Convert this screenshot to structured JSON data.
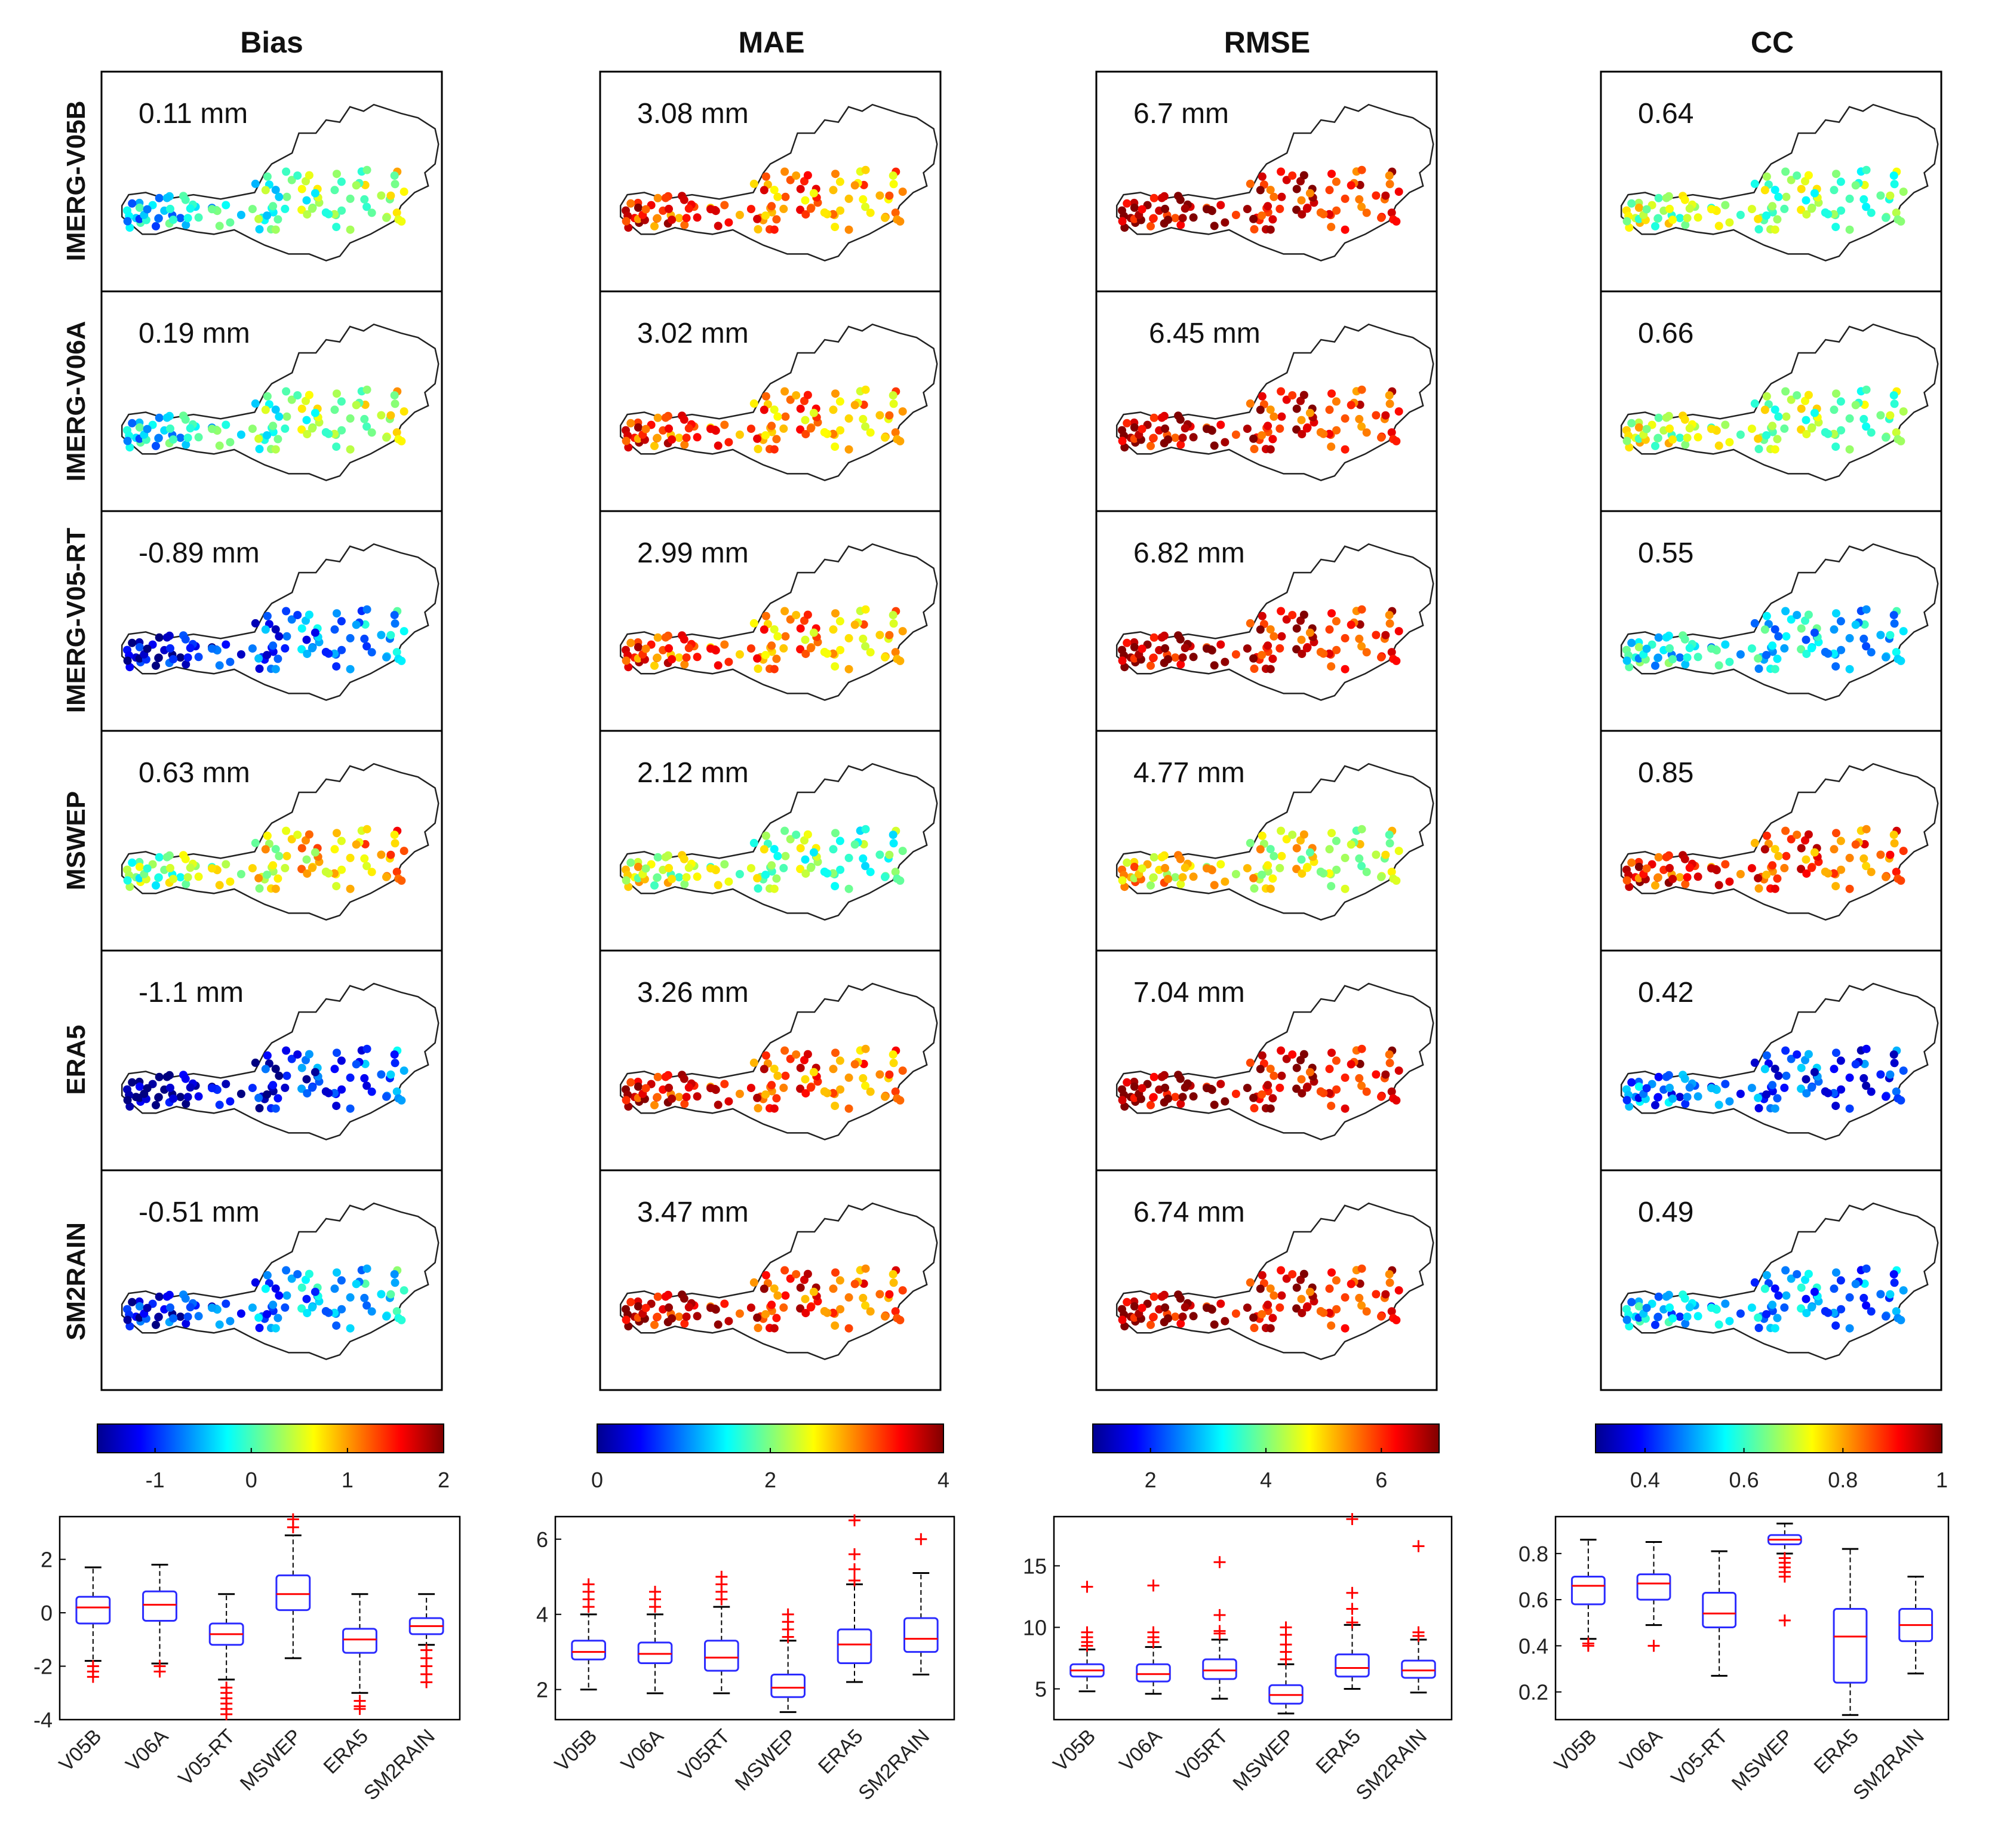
{
  "panels": [
    {
      "title": "Bias",
      "colorbar": {
        "min": -1.6,
        "max": 2,
        "ticks": [
          -1,
          0,
          1,
          2
        ]
      },
      "maps": [
        {
          "label": "IMERG-V05B",
          "value": "0.11 mm"
        },
        {
          "label": "IMERG-V06A",
          "value": "0.19 mm"
        },
        {
          "label": "IMERG-V05-RT",
          "value": "-0.89 mm"
        },
        {
          "label": "MSWEP",
          "value": "0.63 mm"
        },
        {
          "label": "ERA5",
          "value": "-1.1 mm"
        },
        {
          "label": "SM2RAIN",
          "value": "-0.51 mm"
        }
      ]
    },
    {
      "title": "MAE",
      "colorbar": {
        "min": 0,
        "max": 4,
        "ticks": [
          0,
          2,
          4
        ]
      },
      "maps": [
        {
          "label": "IMERG-V05B",
          "value": "3.08 mm"
        },
        {
          "label": "IMERG-V06A",
          "value": "3.02 mm"
        },
        {
          "label": "IMERG-V05-RT",
          "value": "2.99 mm"
        },
        {
          "label": "MSWEP",
          "value": "2.12 mm"
        },
        {
          "label": "ERA5",
          "value": "3.26 mm"
        },
        {
          "label": "SM2RAIN",
          "value": "3.47 mm"
        }
      ]
    },
    {
      "title": "RMSE",
      "colorbar": {
        "min": 1,
        "max": 7,
        "ticks": [
          2,
          4,
          6
        ]
      },
      "maps": [
        {
          "label": "IMERG-V05B",
          "value": "6.7 mm"
        },
        {
          "label": "IMERG-V06A",
          "value": "6.45 mm"
        },
        {
          "label": "IMERG-V05-RT",
          "value": "6.82 mm"
        },
        {
          "label": "MSWEP",
          "value": "4.77 mm"
        },
        {
          "label": "ERA5",
          "value": "7.04 mm"
        },
        {
          "label": "SM2RAIN",
          "value": "6.74 mm"
        }
      ]
    },
    {
      "title": "CC",
      "colorbar": {
        "min": 0.3,
        "max": 1,
        "ticks": [
          0.4,
          0.6,
          0.8,
          1
        ]
      },
      "maps": [
        {
          "label": "IMERG-V05B",
          "value": "0.64"
        },
        {
          "label": "IMERG-V06A",
          "value": "0.66"
        },
        {
          "label": "IMERG-V05-RT",
          "value": "0.55"
        },
        {
          "label": "MSWEP",
          "value": "0.85"
        },
        {
          "label": "ERA5",
          "value": "0.42"
        },
        {
          "label": "SM2RAIN",
          "value": "0.49"
        }
      ]
    }
  ],
  "chart_data": [
    {
      "type": "box",
      "metric": "Bias",
      "categories": [
        "V05B",
        "V06A",
        "V05-RT",
        "MSWEP",
        "ERA5",
        "SM2RAIN"
      ],
      "ylim": [
        -4,
        3.6
      ],
      "yticks": [
        -4,
        -2,
        0,
        2
      ],
      "boxes": [
        {
          "q1": -0.4,
          "median": 0.2,
          "q3": 0.6,
          "whislo": -1.8,
          "whishi": 1.7,
          "outliers": [
            -2.0,
            -2.2,
            -2.4
          ]
        },
        {
          "q1": -0.3,
          "median": 0.3,
          "q3": 0.8,
          "whislo": -1.9,
          "whishi": 1.8,
          "outliers": [
            -2.0,
            -2.2
          ]
        },
        {
          "q1": -1.2,
          "median": -0.8,
          "q3": -0.4,
          "whislo": -2.5,
          "whishi": 0.7,
          "outliers": [
            -2.8,
            -3.0,
            -3.2,
            -3.4,
            -3.6,
            -3.8
          ]
        },
        {
          "q1": 0.1,
          "median": 0.7,
          "q3": 1.4,
          "whislo": -1.7,
          "whishi": 2.9,
          "outliers": [
            3.2,
            3.5
          ]
        },
        {
          "q1": -1.5,
          "median": -1.0,
          "q3": -0.6,
          "whislo": -3.0,
          "whishi": 0.7,
          "outliers": [
            -3.3,
            -3.5,
            -3.6
          ]
        },
        {
          "q1": -0.8,
          "median": -0.5,
          "q3": -0.2,
          "whislo": -1.2,
          "whishi": 0.7,
          "outliers": [
            -1.4,
            -1.7,
            -2.0,
            -2.3,
            -2.6
          ]
        }
      ]
    },
    {
      "type": "box",
      "metric": "MAE",
      "categories": [
        "V05B",
        "V06A",
        "V05RT",
        "MSWEP",
        "ERA5",
        "SM2RAIN"
      ],
      "ylim": [
        1.2,
        6.6
      ],
      "yticks": [
        2,
        4,
        6
      ],
      "boxes": [
        {
          "q1": 2.8,
          "median": 3.0,
          "q3": 3.3,
          "whislo": 2.0,
          "whishi": 4.0,
          "outliers": [
            4.2,
            4.4,
            4.6,
            4.8
          ]
        },
        {
          "q1": 2.7,
          "median": 2.95,
          "q3": 3.25,
          "whislo": 1.9,
          "whishi": 4.0,
          "outliers": [
            4.2,
            4.4,
            4.6
          ]
        },
        {
          "q1": 2.5,
          "median": 2.85,
          "q3": 3.3,
          "whislo": 1.9,
          "whishi": 4.2,
          "outliers": [
            4.4,
            4.6,
            4.8,
            5.0
          ]
        },
        {
          "q1": 1.8,
          "median": 2.05,
          "q3": 2.4,
          "whislo": 1.4,
          "whishi": 3.3,
          "outliers": [
            3.4,
            3.6,
            3.8,
            4.0
          ]
        },
        {
          "q1": 2.7,
          "median": 3.2,
          "q3": 3.6,
          "whislo": 2.2,
          "whishi": 4.8,
          "outliers": [
            4.9,
            5.2,
            5.6,
            6.5
          ]
        },
        {
          "q1": 3.0,
          "median": 3.35,
          "q3": 3.9,
          "whislo": 2.4,
          "whishi": 5.1,
          "outliers": [
            6.0
          ]
        }
      ]
    },
    {
      "type": "box",
      "metric": "RMSE",
      "categories": [
        "V05B",
        "V06A",
        "V05RT",
        "MSWEP",
        "ERA5",
        "SM2RAIN"
      ],
      "ylim": [
        2.5,
        19
      ],
      "yticks": [
        5,
        10,
        15
      ],
      "boxes": [
        {
          "q1": 6.0,
          "median": 6.5,
          "q3": 7.0,
          "whislo": 4.8,
          "whishi": 8.2,
          "outliers": [
            8.5,
            8.8,
            9.2,
            9.6,
            13.3
          ]
        },
        {
          "q1": 5.6,
          "median": 6.2,
          "q3": 7.0,
          "whislo": 4.6,
          "whishi": 8.4,
          "outliers": [
            8.8,
            9.2,
            9.6,
            13.4
          ]
        },
        {
          "q1": 5.8,
          "median": 6.5,
          "q3": 7.4,
          "whislo": 4.2,
          "whishi": 9.0,
          "outliers": [
            9.5,
            9.7,
            11.0,
            15.3
          ]
        },
        {
          "q1": 3.8,
          "median": 4.5,
          "q3": 5.3,
          "whislo": 3.0,
          "whishi": 7.0,
          "outliers": [
            7.4,
            8.0,
            8.6,
            9.4,
            10.0
          ]
        },
        {
          "q1": 6.0,
          "median": 6.7,
          "q3": 7.8,
          "whislo": 5.0,
          "whishi": 10.2,
          "outliers": [
            10.4,
            11.5,
            12.8,
            18.8
          ]
        },
        {
          "q1": 5.9,
          "median": 6.5,
          "q3": 7.3,
          "whislo": 4.7,
          "whishi": 9.0,
          "outliers": [
            9.3,
            9.6,
            16.6
          ]
        }
      ]
    },
    {
      "type": "box",
      "metric": "CC",
      "categories": [
        "V05B",
        "V06A",
        "V05-RT",
        "MSWEP",
        "ERA5",
        "SM2RAIN"
      ],
      "ylim": [
        0.08,
        0.96
      ],
      "yticks": [
        0.2,
        0.4,
        0.6,
        0.8
      ],
      "boxes": [
        {
          "q1": 0.58,
          "median": 0.66,
          "q3": 0.7,
          "whislo": 0.43,
          "whishi": 0.86,
          "outliers": [
            0.41,
            0.4
          ]
        },
        {
          "q1": 0.6,
          "median": 0.67,
          "q3": 0.71,
          "whislo": 0.49,
          "whishi": 0.85,
          "outliers": [
            0.4
          ]
        },
        {
          "q1": 0.48,
          "median": 0.54,
          "q3": 0.63,
          "whislo": 0.27,
          "whishi": 0.81,
          "outliers": []
        },
        {
          "q1": 0.84,
          "median": 0.86,
          "q3": 0.88,
          "whislo": 0.8,
          "whishi": 0.93,
          "outliers": [
            0.78,
            0.76,
            0.74,
            0.72,
            0.7,
            0.51
          ]
        },
        {
          "q1": 0.24,
          "median": 0.44,
          "q3": 0.56,
          "whislo": 0.1,
          "whishi": 0.82,
          "outliers": []
        },
        {
          "q1": 0.42,
          "median": 0.49,
          "q3": 0.56,
          "whislo": 0.28,
          "whishi": 0.7,
          "outliers": []
        }
      ]
    }
  ],
  "colors": {
    "box": "#2b2bff",
    "median": "#ff0000",
    "outlier": "#ff0000",
    "whisker": "#000000",
    "border": "#000000"
  }
}
